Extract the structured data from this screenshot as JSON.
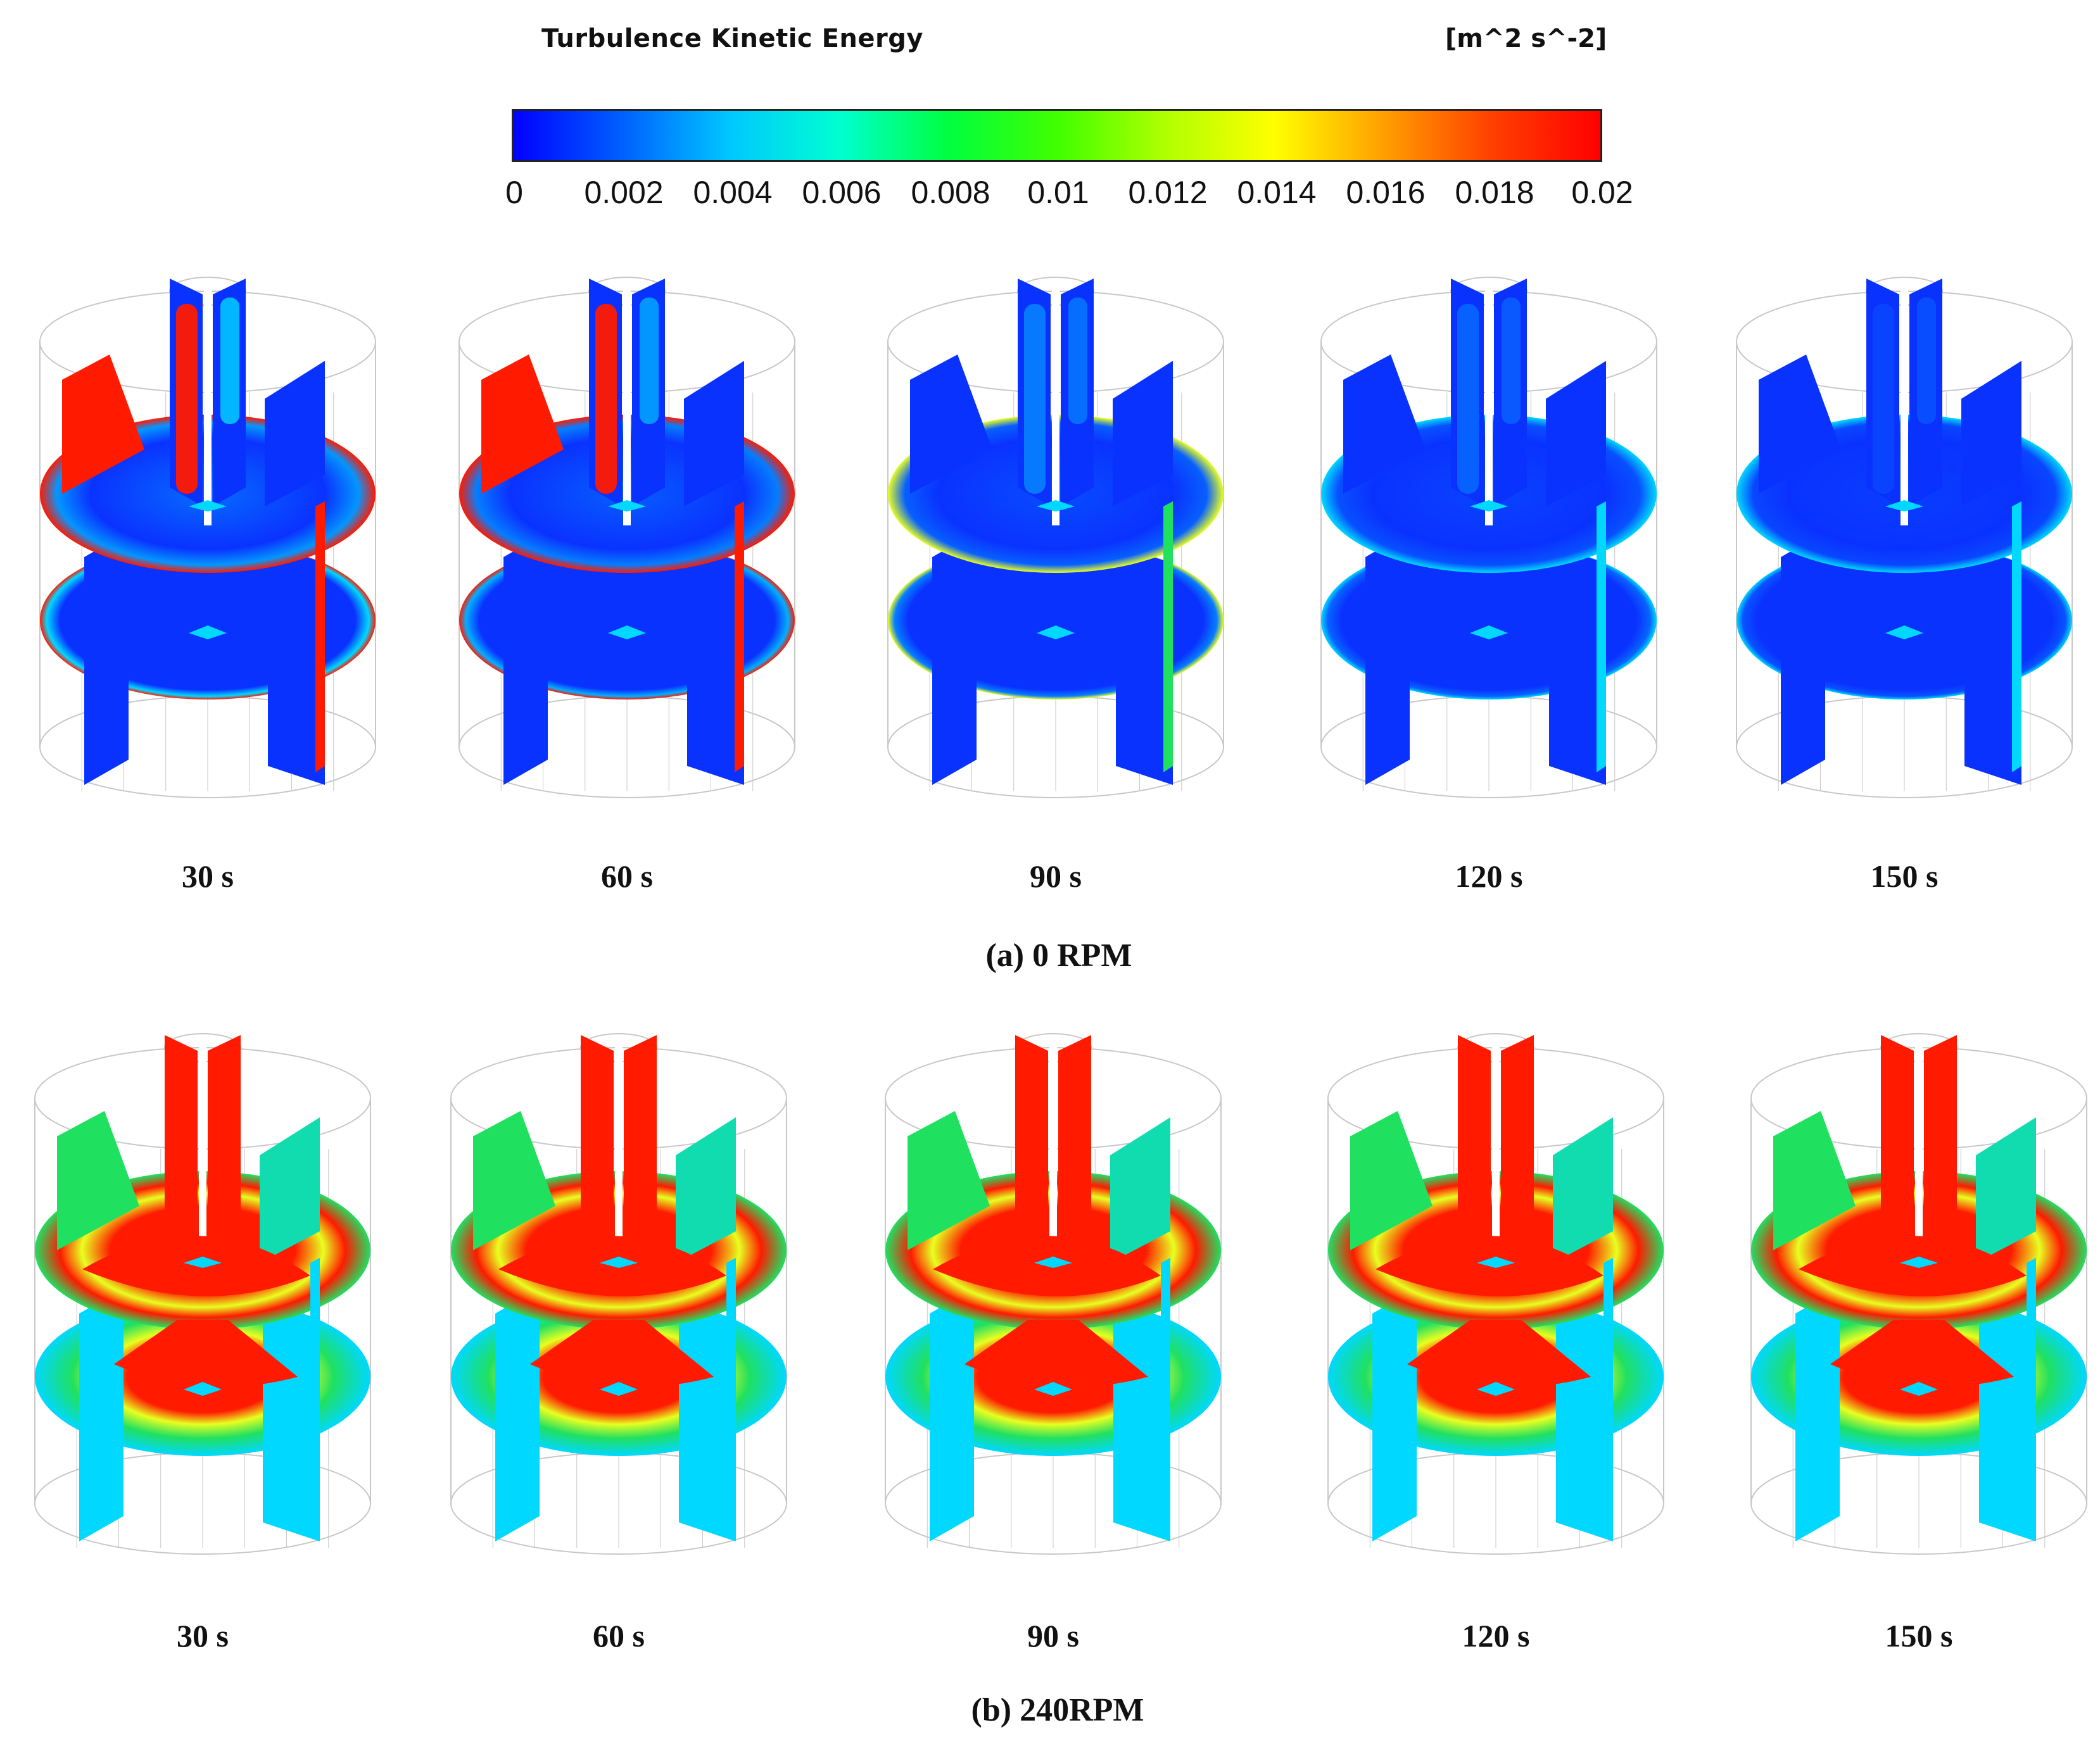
{
  "colorbar": {
    "title": "Turbulence Kinetic Energy",
    "unit": "[m^2  s^-2]",
    "ticks": [
      "0",
      "0.002",
      "0.004",
      "0.006",
      "0.008",
      "0.01",
      "0.012",
      "0.014",
      "0.016",
      "0.018",
      "0.02"
    ],
    "colors": [
      "#0000ff",
      "#0060ff",
      "#00c8ff",
      "#00ffd0",
      "#00ff40",
      "#40ff00",
      "#b0ff00",
      "#ffff00",
      "#ffa000",
      "#ff4000",
      "#ff0000"
    ]
  },
  "rows": [
    {
      "caption": "(a) 0 RPM",
      "times": [
        "30 s",
        "60 s",
        "90 s",
        "120 s",
        "150 s"
      ],
      "intensity": [
        1.0,
        0.75,
        0.45,
        0.3,
        0.2
      ]
    },
    {
      "caption": "(b) 240RPM",
      "times": [
        "30 s",
        "60 s",
        "90 s",
        "120 s",
        "150 s"
      ],
      "intensity": [
        1.0,
        1.0,
        1.0,
        1.0,
        1.0
      ]
    }
  ],
  "palette": {
    "low": "#0a32ff",
    "cyan": "#00d8ff",
    "green": "#20e060",
    "yellow": "#e8ff20",
    "red": "#ff1a00",
    "outline": "#c8c8c8"
  }
}
